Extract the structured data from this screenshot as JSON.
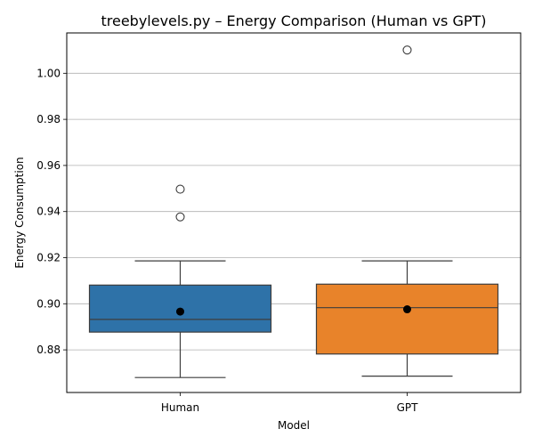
{
  "chart_data": {
    "type": "box",
    "title": "treebylevels.py – Energy Comparison (Human vs GPT)",
    "xlabel": "Model",
    "ylabel": "Energy Consumption",
    "ylim": [
      0.8615,
      1.0175
    ],
    "yticks": [
      0.88,
      0.9,
      0.92,
      0.94,
      0.96,
      0.98,
      1.0
    ],
    "ytick_labels": [
      "0.88",
      "0.90",
      "0.92",
      "0.94",
      "0.96",
      "0.98",
      "1.00"
    ],
    "grid": "y",
    "categories": [
      "Human",
      "GPT"
    ],
    "series": [
      {
        "category": "Human",
        "color": "#2e72a8",
        "whisker_low": 0.868,
        "q1": 0.8877,
        "median": 0.8932,
        "q3": 0.9081,
        "whisker_high": 0.9186,
        "mean": 0.8966,
        "outliers": [
          0.9377,
          0.9497
        ]
      },
      {
        "category": "GPT",
        "color": "#e8832a",
        "whisker_low": 0.8686,
        "q1": 0.8782,
        "median": 0.8983,
        "q3": 0.9085,
        "whisker_high": 0.9186,
        "mean": 0.8976,
        "outliers": [
          1.0101
        ]
      }
    ]
  }
}
